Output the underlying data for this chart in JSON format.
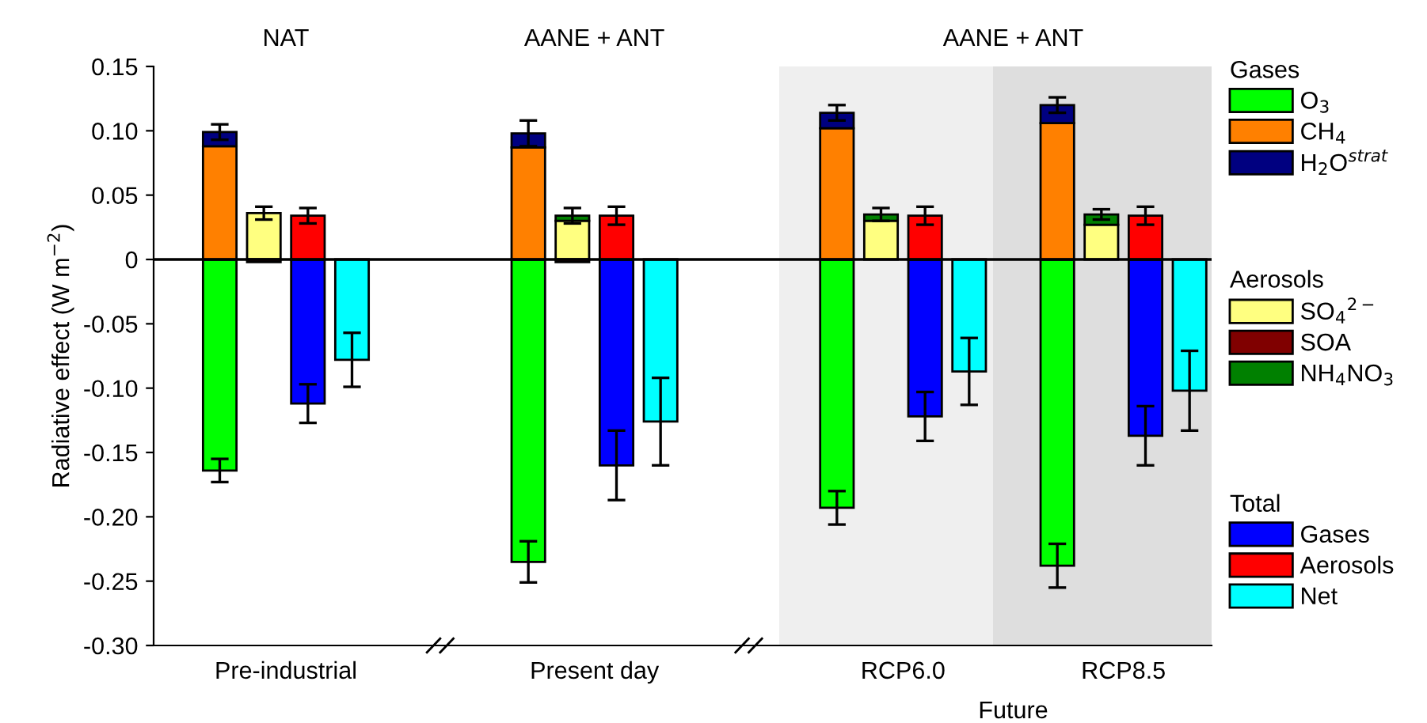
{
  "chart_data": {
    "type": "bar",
    "stacked": true,
    "categories": [
      null,
      null,
      null,
      null,
      null,
      null,
      null,
      null,
      null,
      null,
      null,
      null,
      null,
      null,
      null,
      null,
      null,
      null,
      null,
      null,
      null,
      null,
      null,
      null
    ],
    "ylabel": "Radiative effect (W m$^{−2}$)",
    "ylim": [
      -0.3,
      0.15
    ],
    "yticks": [
      {
        "value": 0.15,
        "label": "0.15"
      },
      {
        "value": 0.1,
        "label": "0.10"
      },
      {
        "value": 0.05,
        "label": "0.05"
      },
      {
        "value": 0,
        "label": "0"
      },
      {
        "value": -0.05,
        "label": "-0.05"
      },
      {
        "value": -0.1,
        "label": "-0.10"
      },
      {
        "value": -0.15,
        "label": "-0.15"
      },
      {
        "value": -0.2,
        "label": "-0.20"
      },
      {
        "value": -0.25,
        "label": "-0.25"
      },
      {
        "value": -0.3,
        "label": "-0.30"
      }
    ],
    "ref_lines": [
      {
        "axis": "y",
        "value": 0,
        "color": "#000000"
      }
    ],
    "legend": "right",
    "legend_title": [
      "Gases",
      "Aerosols",
      "Total"
    ],
    "annotations": [
      "NAT",
      "AANE + ANT",
      "AANE + ANT",
      "Pre-industrial",
      "Present day",
      "RCP6.0",
      "RCP8.5",
      "Future"
    ],
    "series": [
      {
        "name": "O$_{3}$",
        "color": "#00ff00",
        "values": [
          null,
          -0.164,
          null,
          null,
          null,
          null,
          null,
          null,
          -0.235,
          null,
          null,
          null,
          null,
          null,
          null,
          -0.193,
          null,
          null,
          null,
          null,
          -0.238,
          null,
          null,
          null
        ],
        "errors": [
          null,
          0.009,
          null,
          null,
          null,
          null,
          null,
          null,
          0.016,
          null,
          null,
          null,
          null,
          null,
          null,
          0.013,
          null,
          null,
          null,
          null,
          0.017,
          null,
          null,
          null
        ]
      },
      {
        "name": "CH$_{4}$",
        "color": "#ff8000",
        "values": [
          null,
          0.088,
          null,
          null,
          null,
          null,
          null,
          null,
          0.087,
          null,
          null,
          null,
          null,
          null,
          null,
          0.102,
          null,
          null,
          null,
          null,
          0.106,
          null,
          null,
          null
        ]
      },
      {
        "name": "H$_{2}$O$^{strat}$",
        "color": "#000080",
        "values": [
          null,
          0.011,
          null,
          null,
          null,
          null,
          null,
          null,
          0.011,
          null,
          null,
          null,
          null,
          null,
          null,
          0.012,
          null,
          null,
          null,
          null,
          0.014,
          null,
          null,
          null
        ],
        "errors": [
          null,
          0.006,
          null,
          null,
          null,
          null,
          null,
          null,
          0.01,
          null,
          null,
          null,
          null,
          null,
          null,
          0.006,
          null,
          null,
          null,
          null,
          0.006,
          null,
          null,
          null
        ]
      },
      {
        "name": "SO$_{4}$$^{2−}$",
        "color": "#ffff80",
        "values": [
          null,
          null,
          0.036,
          null,
          null,
          null,
          null,
          null,
          null,
          0.03,
          null,
          null,
          null,
          null,
          null,
          null,
          0.03,
          null,
          null,
          null,
          null,
          0.027,
          null,
          null
        ],
        "errors": [
          null,
          null,
          0.005,
          null,
          null,
          null,
          null,
          null,
          null,
          null,
          null,
          null,
          null,
          null,
          null,
          null,
          null,
          null,
          null,
          null,
          null,
          null,
          null,
          null
        ]
      },
      {
        "name": "SOA",
        "color": "#800000",
        "values": [
          null,
          null,
          -0.002,
          null,
          null,
          null,
          null,
          null,
          null,
          -0.002,
          null,
          null,
          null,
          null,
          null,
          null,
          null,
          null,
          null,
          null,
          null,
          null,
          null,
          null
        ]
      },
      {
        "name": "NH$_{4}$NO$_{3}$",
        "color": "#008000",
        "values": [
          null,
          null,
          null,
          null,
          null,
          null,
          null,
          null,
          null,
          0.004,
          null,
          null,
          null,
          null,
          null,
          null,
          0.005,
          null,
          null,
          null,
          null,
          0.008,
          null,
          null
        ],
        "errors": [
          null,
          null,
          null,
          null,
          null,
          null,
          null,
          null,
          null,
          0.006,
          null,
          null,
          null,
          null,
          null,
          null,
          0.005,
          null,
          null,
          null,
          null,
          0.004,
          null,
          null
        ]
      },
      {
        "name": "Gases",
        "color": "#0000ff",
        "values": [
          null,
          null,
          null,
          -0.112,
          null,
          null,
          null,
          null,
          null,
          null,
          -0.16,
          null,
          null,
          null,
          null,
          null,
          null,
          -0.122,
          null,
          null,
          null,
          null,
          -0.137,
          null
        ],
        "errors": [
          null,
          null,
          null,
          0.015,
          null,
          null,
          null,
          null,
          null,
          null,
          0.027,
          null,
          null,
          null,
          null,
          null,
          null,
          0.019,
          null,
          null,
          null,
          null,
          0.023,
          null
        ]
      },
      {
        "name": "Aerosols",
        "color": "#ff0000",
        "values": [
          null,
          null,
          null,
          0.034,
          null,
          null,
          null,
          null,
          null,
          null,
          0.034,
          null,
          null,
          null,
          null,
          null,
          null,
          0.034,
          null,
          null,
          null,
          null,
          0.034,
          null
        ],
        "errors": [
          null,
          null,
          null,
          0.006,
          null,
          null,
          null,
          null,
          null,
          null,
          0.007,
          null,
          null,
          null,
          null,
          null,
          null,
          0.007,
          null,
          null,
          null,
          null,
          0.007,
          null
        ]
      },
      {
        "name": "Net",
        "color": "#00ffff",
        "values": [
          null,
          null,
          null,
          null,
          -0.078,
          null,
          null,
          null,
          null,
          null,
          null,
          -0.126,
          null,
          null,
          null,
          null,
          null,
          null,
          -0.087,
          null,
          null,
          null,
          null,
          -0.102
        ],
        "errors": [
          null,
          null,
          null,
          null,
          0.021,
          null,
          null,
          null,
          null,
          null,
          null,
          0.034,
          null,
          null,
          null,
          null,
          null,
          null,
          0.026,
          null,
          null,
          null,
          null,
          0.031
        ]
      }
    ]
  }
}
